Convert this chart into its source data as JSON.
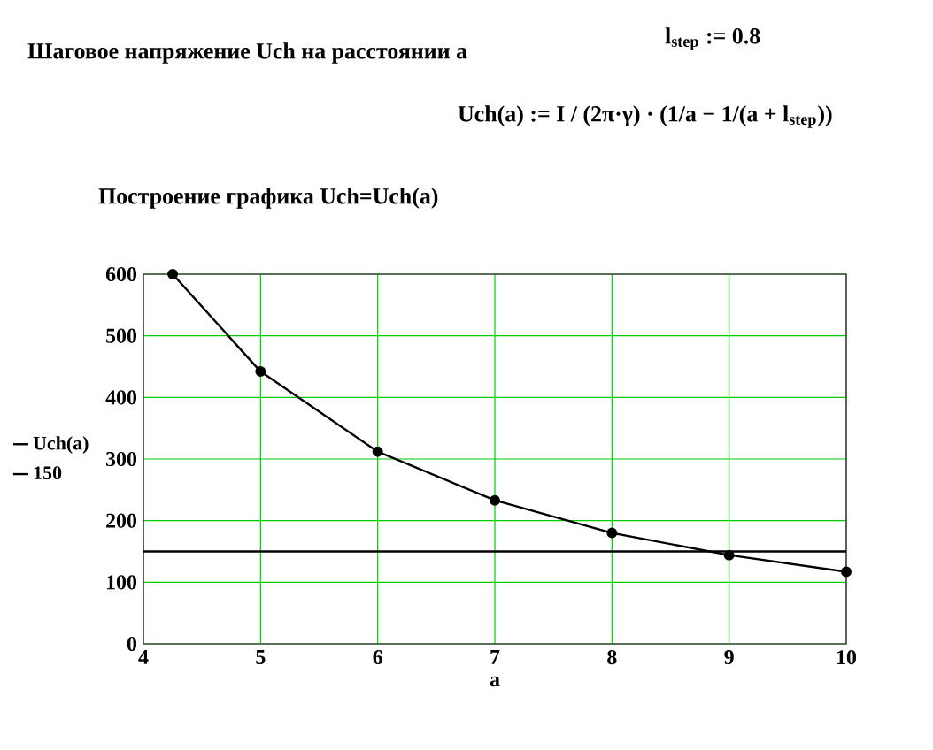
{
  "chart_data": {
    "type": "line",
    "title": "Шаговое напряжение Uch на расстоянии a",
    "annotations": [
      "l$_{step}$ := 0.8",
      "Uch(a) := I / (2π·γ) · (1/a − 1/(a + l$_{step}$))",
      "Построение графика Uch=Uch(a)"
    ],
    "xlabel": "a",
    "series": [
      {
        "name": "Uch(a)",
        "color": "#000000",
        "marker": "circle",
        "x": [
          4.25,
          5,
          6,
          7,
          8,
          9,
          10
        ],
        "values": [
          600,
          442,
          312,
          233,
          180,
          144,
          117
        ]
      },
      {
        "name": "150",
        "color": "#000000",
        "marker": "none",
        "x": [
          4,
          10
        ],
        "values": [
          150,
          150
        ]
      }
    ],
    "xlim": [
      4,
      10
    ],
    "ylim": [
      0,
      600
    ],
    "xticks": [
      4,
      5,
      6,
      7,
      8,
      9,
      10
    ],
    "yticks": [
      0,
      100,
      200,
      300,
      400,
      500,
      600
    ],
    "grid": true,
    "legend": "left"
  }
}
